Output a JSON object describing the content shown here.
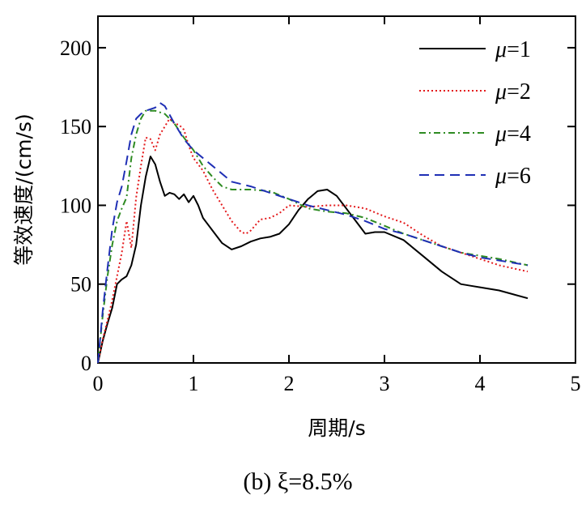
{
  "chart_data": {
    "type": "line",
    "title": "",
    "xlabel": "周期/s",
    "ylabel": "等效速度/(cm/s)",
    "xlim": [
      0,
      5
    ],
    "ylim": [
      0,
      220
    ],
    "xticks": [
      0,
      1,
      2,
      3,
      4,
      5
    ],
    "xtick_labels": [
      "0",
      "1",
      "2",
      "3",
      "4",
      "5"
    ],
    "yticks": [
      0,
      50,
      100,
      150,
      200
    ],
    "ytick_labels": [
      "0",
      "50",
      "100",
      "150",
      "200"
    ],
    "grid": false,
    "legend_position": "top-right",
    "caption": "(b) ξ=8.5%",
    "series": [
      {
        "name": "μ=1",
        "mu_symbol": "μ",
        "mu_value": "=1",
        "color": "#000000",
        "dash": "solid",
        "x": [
          0,
          0.05,
          0.1,
          0.15,
          0.2,
          0.25,
          0.3,
          0.35,
          0.4,
          0.45,
          0.5,
          0.55,
          0.6,
          0.65,
          0.7,
          0.75,
          0.8,
          0.85,
          0.9,
          0.95,
          1.0,
          1.05,
          1.1,
          1.2,
          1.3,
          1.4,
          1.5,
          1.6,
          1.7,
          1.8,
          1.9,
          2.0,
          2.1,
          2.2,
          2.3,
          2.4,
          2.5,
          2.6,
          2.7,
          2.8,
          2.9,
          3.0,
          3.2,
          3.4,
          3.6,
          3.8,
          3.9,
          4.0,
          4.2,
          4.5
        ],
        "y": [
          0,
          14,
          25,
          35,
          50,
          53,
          55,
          62,
          75,
          100,
          118,
          131,
          126,
          115,
          106,
          108,
          107,
          104,
          107,
          102,
          106,
          100,
          92,
          84,
          76,
          72,
          74,
          77,
          79,
          80,
          82,
          88,
          97,
          104,
          109,
          110,
          106,
          98,
          90,
          82,
          83,
          83,
          78,
          68,
          58,
          50,
          49,
          48,
          46,
          41
        ]
      },
      {
        "name": "μ=2",
        "mu_symbol": "μ",
        "mu_value": "=2",
        "color": "#e41a1c",
        "dash": "dotted",
        "x": [
          0,
          0.05,
          0.1,
          0.15,
          0.2,
          0.25,
          0.3,
          0.35,
          0.4,
          0.45,
          0.5,
          0.55,
          0.6,
          0.65,
          0.7,
          0.75,
          0.8,
          0.85,
          0.9,
          0.95,
          1.0,
          1.1,
          1.2,
          1.3,
          1.4,
          1.5,
          1.55,
          1.6,
          1.7,
          1.8,
          1.9,
          2.0,
          2.2,
          2.4,
          2.6,
          2.8,
          3.0,
          3.2,
          3.4,
          3.6,
          3.8,
          4.0,
          4.2,
          4.5
        ],
        "y": [
          0,
          15,
          27,
          40,
          55,
          70,
          90,
          73,
          105,
          125,
          143,
          142,
          135,
          145,
          150,
          155,
          152,
          151,
          148,
          138,
          130,
          122,
          110,
          100,
          90,
          83,
          82,
          84,
          91,
          92,
          95,
          100,
          99,
          100,
          100,
          98,
          93,
          89,
          81,
          74,
          70,
          66,
          62,
          58
        ]
      },
      {
        "name": "μ=4",
        "mu_symbol": "μ",
        "mu_value": "=4",
        "color": "#2e8b22",
        "dash": "dashdot",
        "x": [
          0,
          0.05,
          0.1,
          0.15,
          0.2,
          0.25,
          0.3,
          0.35,
          0.4,
          0.45,
          0.5,
          0.6,
          0.7,
          0.8,
          0.9,
          1.0,
          1.1,
          1.2,
          1.3,
          1.4,
          1.6,
          1.8,
          2.0,
          2.2,
          2.4,
          2.6,
          2.8,
          3.0,
          3.2,
          3.4,
          3.6,
          3.8,
          4.0,
          4.2,
          4.5
        ],
        "y": [
          0,
          30,
          55,
          75,
          90,
          98,
          105,
          130,
          145,
          155,
          160,
          160,
          158,
          152,
          143,
          135,
          125,
          118,
          112,
          110,
          110,
          109,
          104,
          98,
          96,
          95,
          92,
          87,
          82,
          78,
          74,
          70,
          68,
          66,
          62
        ]
      },
      {
        "name": "μ=6",
        "mu_symbol": "μ",
        "mu_value": "=6",
        "color": "#1f2fb5",
        "dash": "dashed",
        "x": [
          0,
          0.05,
          0.1,
          0.15,
          0.2,
          0.25,
          0.3,
          0.35,
          0.4,
          0.45,
          0.5,
          0.55,
          0.6,
          0.65,
          0.7,
          0.8,
          0.9,
          1.0,
          1.2,
          1.4,
          1.6,
          1.8,
          2.0,
          2.2,
          2.4,
          2.6,
          2.8,
          3.0,
          3.2,
          3.4,
          3.6,
          3.8,
          4.0,
          4.2,
          4.5
        ],
        "y": [
          0,
          33,
          60,
          85,
          102,
          112,
          128,
          145,
          155,
          158,
          160,
          161,
          162,
          165,
          163,
          152,
          142,
          135,
          125,
          115,
          112,
          108,
          104,
          100,
          97,
          94,
          90,
          85,
          82,
          78,
          74,
          70,
          67,
          65,
          62
        ]
      }
    ]
  }
}
